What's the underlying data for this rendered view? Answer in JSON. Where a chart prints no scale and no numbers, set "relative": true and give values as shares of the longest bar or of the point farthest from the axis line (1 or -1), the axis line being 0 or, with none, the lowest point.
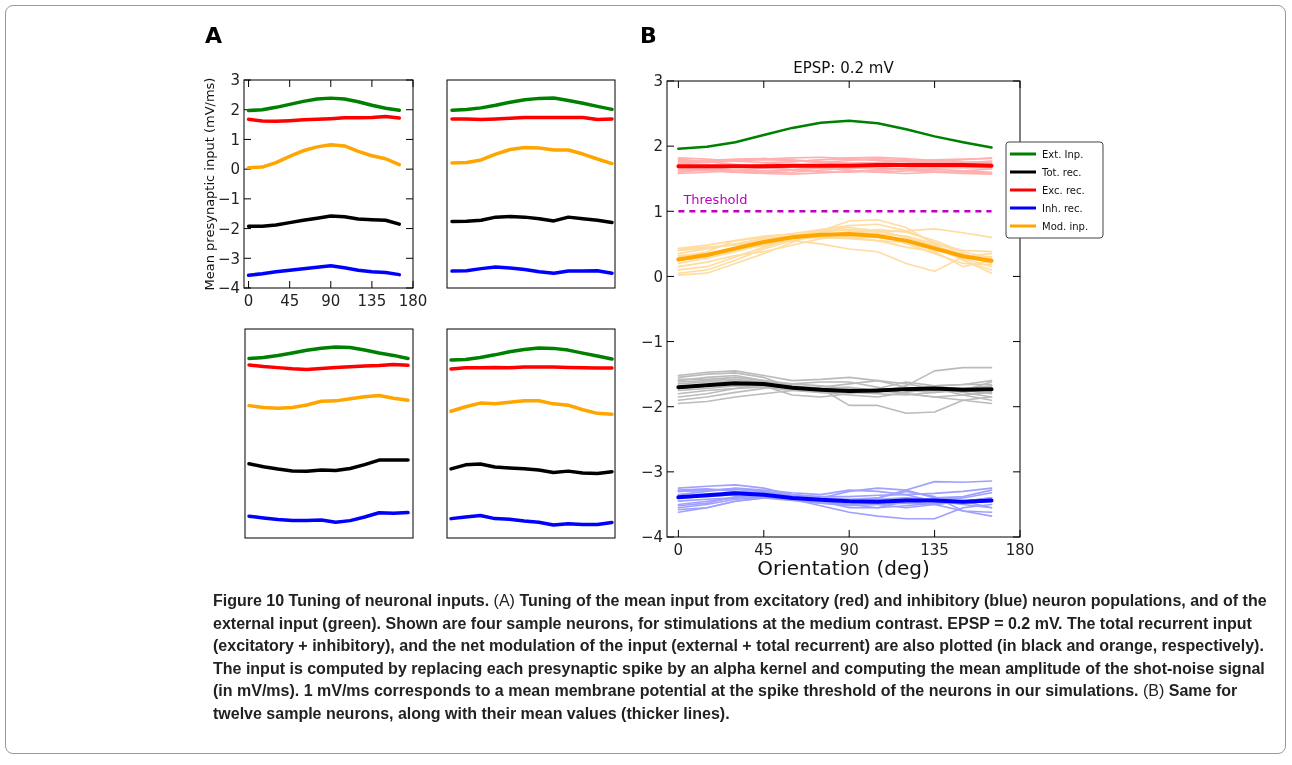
{
  "chart_data": [
    {
      "type": "line",
      "annotations": [
        "A"
      ],
      "ylabel": "Mean presynaptic input (mV/ms)",
      "x": [
        0,
        15,
        30,
        45,
        60,
        75,
        90,
        105,
        120,
        135,
        150,
        165
      ],
      "xlim": [
        -5,
        180
      ],
      "xticks": [
        0,
        45,
        90,
        135,
        180
      ],
      "ylim": [
        -4,
        3
      ],
      "yticks": [
        -4,
        -3,
        -2,
        -1,
        0,
        1,
        2,
        3
      ],
      "series": [
        {
          "color": "#008000",
          "values": [
            1.97,
            2.0,
            2.08,
            2.18,
            2.28,
            2.36,
            2.39,
            2.36,
            2.27,
            2.15,
            2.05,
            1.98
          ]
        },
        {
          "color": "#ff0000",
          "values": [
            1.68,
            1.62,
            1.61,
            1.63,
            1.66,
            1.68,
            1.7,
            1.73,
            1.73,
            1.74,
            1.77,
            1.72
          ]
        },
        {
          "color": "#ffa500",
          "values": [
            0.05,
            0.07,
            0.22,
            0.43,
            0.62,
            0.75,
            0.82,
            0.78,
            0.6,
            0.45,
            0.35,
            0.15
          ]
        },
        {
          "color": "#000000",
          "values": [
            -1.92,
            -1.92,
            -1.88,
            -1.8,
            -1.72,
            -1.65,
            -1.58,
            -1.6,
            -1.68,
            -1.7,
            -1.72,
            -1.85
          ]
        },
        {
          "color": "#0000ff",
          "values": [
            -3.57,
            -3.52,
            -3.45,
            -3.4,
            -3.35,
            -3.3,
            -3.25,
            -3.32,
            -3.4,
            -3.45,
            -3.48,
            -3.55
          ]
        }
      ]
    },
    {
      "type": "line",
      "relative": true,
      "categories": [
        null,
        null,
        null,
        null,
        null,
        null,
        null,
        null,
        null,
        null,
        null,
        null
      ],
      "series": [
        {
          "color": "#008000",
          "values": [
            0.936,
            0.939,
            0.948,
            0.962,
            0.978,
            0.991,
            0.998,
            1,
            0.987,
            0.972,
            0.956,
            0.94
          ]
        },
        {
          "color": "#ff0000",
          "values": [
            0.889,
            0.889,
            0.887,
            0.89,
            0.893,
            0.897,
            0.898,
            0.898,
            0.898,
            0.897,
            0.887,
            0.89
          ]
        },
        {
          "color": "#ffa500",
          "values": [
            0.658,
            0.661,
            0.674,
            0.705,
            0.729,
            0.74,
            0.737,
            0.726,
            0.726,
            0.705,
            0.679,
            0.655
          ]
        },
        {
          "color": "#000000",
          "values": [
            0.35,
            0.351,
            0.357,
            0.373,
            0.376,
            0.373,
            0.365,
            0.353,
            0.373,
            0.365,
            0.357,
            0.345
          ]
        },
        {
          "color": "#0000ff",
          "values": [
            0.089,
            0.091,
            0.102,
            0.11,
            0.105,
            0.097,
            0.086,
            0.078,
            0.089,
            0.089,
            0.091,
            0.078
          ]
        }
      ]
    },
    {
      "type": "line",
      "relative": true,
      "categories": [
        null,
        null,
        null,
        null,
        null,
        null,
        null,
        null,
        null,
        null,
        null,
        null
      ],
      "series": [
        {
          "color": "#008000",
          "values": [
            0.94,
            0.945,
            0.956,
            0.969,
            0.983,
            0.994,
            1,
            0.997,
            0.984,
            0.969,
            0.956,
            0.94
          ]
        },
        {
          "color": "#ff0000",
          "values": [
            0.906,
            0.898,
            0.892,
            0.886,
            0.882,
            0.887,
            0.893,
            0.897,
            0.9,
            0.903,
            0.909,
            0.904
          ]
        },
        {
          "color": "#ffa500",
          "values": [
            0.693,
            0.683,
            0.679,
            0.683,
            0.696,
            0.716,
            0.718,
            0.729,
            0.74,
            0.746,
            0.732,
            0.721
          ]
        },
        {
          "color": "#000000",
          "values": [
            0.389,
            0.373,
            0.361,
            0.351,
            0.35,
            0.356,
            0.353,
            0.364,
            0.384,
            0.408,
            0.408,
            0.409
          ]
        },
        {
          "color": "#0000ff",
          "values": [
            0.114,
            0.105,
            0.097,
            0.091,
            0.091,
            0.094,
            0.082,
            0.091,
            0.11,
            0.132,
            0.129,
            0.133
          ]
        }
      ]
    },
    {
      "type": "line",
      "relative": true,
      "categories": [
        null,
        null,
        null,
        null,
        null,
        null,
        null,
        null,
        null,
        null,
        null,
        null
      ],
      "series": [
        {
          "color": "#008000",
          "values": [
            0.937,
            0.94,
            0.95,
            0.964,
            0.98,
            0.992,
            1,
            0.998,
            0.989,
            0.973,
            0.958,
            0.942
          ]
        },
        {
          "color": "#ff0000",
          "values": [
            0.89,
            0.896,
            0.896,
            0.898,
            0.896,
            0.9,
            0.9,
            0.9,
            0.898,
            0.896,
            0.895,
            0.895
          ]
        },
        {
          "color": "#ffa500",
          "values": [
            0.667,
            0.691,
            0.71,
            0.706,
            0.714,
            0.722,
            0.722,
            0.706,
            0.699,
            0.675,
            0.656,
            0.651
          ]
        },
        {
          "color": "#000000",
          "values": [
            0.364,
            0.385,
            0.389,
            0.374,
            0.369,
            0.364,
            0.358,
            0.345,
            0.352,
            0.342,
            0.339,
            0.349
          ]
        },
        {
          "color": "#0000ff",
          "values": [
            0.102,
            0.111,
            0.118,
            0.102,
            0.099,
            0.089,
            0.083,
            0.068,
            0.075,
            0.071,
            0.071,
            0.082
          ]
        }
      ]
    },
    {
      "type": "line",
      "title": "EPSP: 0.2 mV",
      "xlabel": "Orientation (deg)",
      "legend": "right",
      "x": [
        0,
        15,
        30,
        45,
        60,
        75,
        90,
        105,
        120,
        135,
        150,
        165
      ],
      "xlim": [
        -6,
        180
      ],
      "xticks": [
        0,
        45,
        90,
        135,
        180
      ],
      "ylim": [
        -4,
        3
      ],
      "yticks": [
        -4,
        -3,
        -2,
        -1,
        0,
        1,
        2,
        3
      ],
      "ref_lines": [
        {
          "axis": "y",
          "value": 1,
          "label": "Threshold",
          "color": "#bf00bf",
          "line_style": "dashed"
        }
      ],
      "annotations": [
        "B",
        "Figure 10 Tuning of neuronal inputs.",
        "(A)",
        "Tuning of the mean input from excitatory (red) and inhibitory (blue) neuron populations, and of the external input (green). Shown are four sample neurons, for stimulations at the medium contrast. EPSP = 0.2 mV. The total recurrent input (excitatory + inhibitory), and the net modulation of the input (external + total recurrent) are also plotted (in black and orange, respectively). The input is computed by replacing each presynaptic spike by an alpha kernel and computing the mean amplitude of the shot-noise signal (in mV/ms). 1 mV/ms corresponds to a mean membrane potential at the spike threshold of the neurons in our simulations.",
        "(B)",
        "Same for twelve sample neurons, along with their mean values (thicker lines)."
      ],
      "series": [
        {
          "color": "#ffb0b0",
          "values": [
            1.58,
            1.6,
            1.63,
            1.66,
            1.68,
            1.66,
            1.63,
            1.6,
            1.58,
            1.6,
            1.62,
            1.6
          ]
        },
        {
          "color": "#ffb0b0",
          "values": [
            1.64,
            1.62,
            1.6,
            1.59,
            1.6,
            1.63,
            1.66,
            1.67,
            1.65,
            1.62,
            1.6,
            1.59
          ]
        },
        {
          "color": "#ffb0b0",
          "values": [
            1.76,
            1.78,
            1.8,
            1.81,
            1.79,
            1.76,
            1.74,
            1.75,
            1.78,
            1.77,
            1.74,
            1.72
          ]
        },
        {
          "color": "#ffb0b0",
          "values": [
            1.82,
            1.8,
            1.77,
            1.75,
            1.76,
            1.79,
            1.82,
            1.83,
            1.81,
            1.78,
            1.76,
            1.75
          ]
        },
        {
          "color": "#ffb0b0",
          "values": [
            1.6,
            1.64,
            1.68,
            1.72,
            1.76,
            1.79,
            1.8,
            1.78,
            1.76,
            1.75,
            1.74,
            1.74
          ]
        },
        {
          "color": "#ffb0b0",
          "values": [
            1.8,
            1.76,
            1.72,
            1.68,
            1.64,
            1.61,
            1.6,
            1.62,
            1.66,
            1.67,
            1.67,
            1.67
          ]
        },
        {
          "color": "#ffb0b0",
          "values": [
            1.66,
            1.64,
            1.62,
            1.62,
            1.64,
            1.67,
            1.7,
            1.74,
            1.77,
            1.79,
            1.8,
            1.81
          ]
        },
        {
          "color": "#ffb0b0",
          "values": [
            1.74,
            1.76,
            1.78,
            1.79,
            1.78,
            1.75,
            1.71,
            1.67,
            1.63,
            1.6,
            1.58,
            1.57
          ]
        },
        {
          "color": "#ffb0b0",
          "values": [
            1.62,
            1.66,
            1.63,
            1.6,
            1.63,
            1.66,
            1.63,
            1.6,
            1.62,
            1.65,
            1.62,
            1.65
          ]
        },
        {
          "color": "#ffb0b0",
          "values": [
            1.78,
            1.75,
            1.78,
            1.81,
            1.78,
            1.75,
            1.78,
            1.81,
            1.79,
            1.76,
            1.79,
            1.82
          ]
        },
        {
          "color": "#ffb0b0",
          "values": [
            1.66,
            1.63,
            1.6,
            1.58,
            1.57,
            1.59,
            1.61,
            1.64,
            1.66,
            1.7,
            1.74,
            1.76
          ]
        },
        {
          "color": "#ffb0b0",
          "values": [
            1.73,
            1.75,
            1.77,
            1.8,
            1.82,
            1.83,
            1.81,
            1.79,
            1.76,
            1.74,
            1.74,
            1.77
          ]
        },
        {
          "color": "#ffdca0",
          "values": [
            0.43,
            0.48,
            0.55,
            0.6,
            0.66,
            0.72,
            0.7,
            0.68,
            0.7,
            0.73,
            0.67,
            0.6
          ]
        },
        {
          "color": "#ffdca0",
          "values": [
            0.02,
            0.05,
            0.2,
            0.35,
            0.52,
            0.7,
            0.85,
            0.87,
            0.75,
            0.5,
            0.25,
            0.1
          ]
        },
        {
          "color": "#ffdca0",
          "values": [
            0.4,
            0.43,
            0.5,
            0.52,
            0.55,
            0.5,
            0.42,
            0.38,
            0.2,
            0.08,
            0.3,
            0.35
          ]
        },
        {
          "color": "#ffdca0",
          "values": [
            0.2,
            0.28,
            0.38,
            0.5,
            0.62,
            0.72,
            0.78,
            0.8,
            0.7,
            0.52,
            0.35,
            0.22
          ]
        },
        {
          "color": "#ffdca0",
          "values": [
            0.3,
            0.38,
            0.55,
            0.62,
            0.65,
            0.62,
            0.6,
            0.6,
            0.55,
            0.45,
            0.28,
            0.15
          ]
        },
        {
          "color": "#ffdca0",
          "values": [
            0.1,
            0.15,
            0.3,
            0.45,
            0.58,
            0.68,
            0.72,
            0.7,
            0.6,
            0.45,
            0.25,
            0.05
          ]
        },
        {
          "color": "#ffdca0",
          "values": [
            0.35,
            0.42,
            0.5,
            0.58,
            0.62,
            0.65,
            0.6,
            0.55,
            0.52,
            0.4,
            0.32,
            0.3
          ]
        },
        {
          "color": "#ffdca0",
          "values": [
            0.15,
            0.22,
            0.32,
            0.38,
            0.48,
            0.58,
            0.62,
            0.65,
            0.62,
            0.5,
            0.4,
            0.38
          ]
        },
        {
          "color": "#ffdca0",
          "values": [
            0.25,
            0.3,
            0.4,
            0.48,
            0.58,
            0.6,
            0.58,
            0.55,
            0.45,
            0.38,
            0.15,
            0.25
          ]
        },
        {
          "color": "#ffdca0",
          "values": [
            0.42,
            0.45,
            0.48,
            0.55,
            0.6,
            0.62,
            0.65,
            0.72,
            0.68,
            0.55,
            0.38,
            0.28
          ]
        },
        {
          "color": "#ffdca0",
          "values": [
            0.05,
            0.1,
            0.25,
            0.42,
            0.55,
            0.62,
            0.68,
            0.65,
            0.5,
            0.35,
            0.2,
            0.18
          ]
        },
        {
          "color": "#ffdca0",
          "values": [
            0.32,
            0.35,
            0.42,
            0.5,
            0.6,
            0.7,
            0.75,
            0.7,
            0.6,
            0.48,
            0.32,
            0.2
          ]
        },
        {
          "color": "#bbbbbb",
          "values": [
            -1.55,
            -1.5,
            -1.48,
            -1.55,
            -1.7,
            -1.72,
            -1.75,
            -1.78,
            -1.68,
            -1.45,
            -1.4,
            -1.4
          ]
        },
        {
          "color": "#bbbbbb",
          "values": [
            -1.95,
            -1.92,
            -1.85,
            -1.8,
            -1.75,
            -1.72,
            -1.7,
            -1.75,
            -1.8,
            -1.85,
            -1.9,
            -1.95
          ]
        },
        {
          "color": "#bbbbbb",
          "values": [
            -1.6,
            -1.55,
            -1.52,
            -1.6,
            -1.68,
            -1.72,
            -1.98,
            -1.98,
            -2.1,
            -2.08,
            -1.9,
            -1.85
          ]
        },
        {
          "color": "#bbbbbb",
          "values": [
            -1.75,
            -1.72,
            -1.68,
            -1.68,
            -1.72,
            -1.7,
            -1.65,
            -1.6,
            -1.65,
            -1.72,
            -1.82,
            -1.9
          ]
        },
        {
          "color": "#bbbbbb",
          "values": [
            -1.52,
            -1.47,
            -1.45,
            -1.52,
            -1.6,
            -1.58,
            -1.55,
            -1.6,
            -1.7,
            -1.75,
            -1.75,
            -1.62
          ]
        },
        {
          "color": "#bbbbbb",
          "values": [
            -1.9,
            -1.85,
            -1.78,
            -1.72,
            -1.65,
            -1.62,
            -1.62,
            -1.7,
            -1.8,
            -1.85,
            -1.82,
            -1.78
          ]
        },
        {
          "color": "#bbbbbb",
          "values": [
            -1.72,
            -1.68,
            -1.58,
            -1.62,
            -1.72,
            -1.78,
            -1.82,
            -1.85,
            -1.78,
            -1.72,
            -1.78,
            -1.85
          ]
        },
        {
          "color": "#bbbbbb",
          "values": [
            -1.65,
            -1.62,
            -1.62,
            -1.68,
            -1.82,
            -1.85,
            -1.8,
            -1.72,
            -1.62,
            -1.68,
            -1.66,
            -1.6
          ]
        },
        {
          "color": "#bbbbbb",
          "values": [
            -1.58,
            -1.58,
            -1.55,
            -1.6,
            -1.65,
            -1.68,
            -1.72,
            -1.75,
            -1.72,
            -1.7,
            -1.72,
            -1.75
          ]
        },
        {
          "color": "#bbbbbb",
          "values": [
            -1.8,
            -1.75,
            -1.72,
            -1.7,
            -1.75,
            -1.78,
            -1.78,
            -1.72,
            -1.75,
            -1.78,
            -1.72,
            -1.68
          ]
        },
        {
          "color": "#bbbbbb",
          "values": [
            -1.85,
            -1.8,
            -1.72,
            -1.64,
            -1.7,
            -1.75,
            -1.78,
            -1.8,
            -1.82,
            -1.78,
            -1.75,
            -1.8
          ]
        },
        {
          "color": "#bbbbbb",
          "values": [
            -1.62,
            -1.6,
            -1.58,
            -1.65,
            -1.72,
            -1.76,
            -1.78,
            -1.76,
            -1.72,
            -1.68,
            -1.66,
            -1.66
          ]
        },
        {
          "color": "#a0a0ff",
          "values": [
            -3.3,
            -3.28,
            -3.26,
            -3.3,
            -3.38,
            -3.45,
            -3.5,
            -3.4,
            -3.28,
            -3.15,
            -3.16,
            -3.14
          ]
        },
        {
          "color": "#a0a0ff",
          "values": [
            -3.55,
            -3.5,
            -3.42,
            -3.4,
            -3.42,
            -3.52,
            -3.62,
            -3.68,
            -3.72,
            -3.72,
            -3.55,
            -3.5
          ]
        },
        {
          "color": "#a0a0ff",
          "values": [
            -3.25,
            -3.22,
            -3.2,
            -3.25,
            -3.35,
            -3.4,
            -3.45,
            -3.5,
            -3.55,
            -3.5,
            -3.45,
            -3.55
          ]
        },
        {
          "color": "#a0a0ff",
          "values": [
            -3.5,
            -3.45,
            -3.4,
            -3.35,
            -3.38,
            -3.4,
            -3.42,
            -3.4,
            -3.3,
            -3.38,
            -3.6,
            -3.62
          ]
        },
        {
          "color": "#a0a0ff",
          "values": [
            -3.4,
            -3.38,
            -3.35,
            -3.32,
            -3.35,
            -3.4,
            -3.3,
            -3.25,
            -3.28,
            -3.4,
            -3.38,
            -3.28
          ]
        },
        {
          "color": "#a0a0ff",
          "values": [
            -3.58,
            -3.55,
            -3.45,
            -3.4,
            -3.42,
            -3.45,
            -3.55,
            -3.55,
            -3.45,
            -3.5,
            -3.6,
            -3.68
          ]
        },
        {
          "color": "#a0a0ff",
          "values": [
            -3.35,
            -3.3,
            -3.25,
            -3.28,
            -3.32,
            -3.35,
            -3.28,
            -3.3,
            -3.35,
            -3.45,
            -3.5,
            -3.55
          ]
        },
        {
          "color": "#a0a0ff",
          "values": [
            -3.45,
            -3.42,
            -3.4,
            -3.38,
            -3.42,
            -3.48,
            -3.5,
            -3.55,
            -3.52,
            -3.48,
            -3.45,
            -3.4
          ]
        },
        {
          "color": "#a0a0ff",
          "values": [
            -3.28,
            -3.26,
            -3.3,
            -3.32,
            -3.38,
            -3.42,
            -3.45,
            -3.42,
            -3.4,
            -3.42,
            -3.48,
            -3.45
          ]
        },
        {
          "color": "#a0a0ff",
          "values": [
            -3.52,
            -3.48,
            -3.38,
            -3.35,
            -3.4,
            -3.45,
            -3.5,
            -3.48,
            -3.45,
            -3.42,
            -3.4,
            -3.32
          ]
        },
        {
          "color": "#a0a0ff",
          "values": [
            -3.3,
            -3.28,
            -3.27,
            -3.3,
            -3.35,
            -3.38,
            -3.38,
            -3.36,
            -3.35,
            -3.33,
            -3.3,
            -3.25
          ]
        },
        {
          "color": "#a0a0ff",
          "values": [
            -3.62,
            -3.55,
            -3.45,
            -3.4,
            -3.44,
            -3.48,
            -3.52,
            -3.5,
            -3.48,
            -3.5,
            -3.45,
            -3.4
          ]
        },
        {
          "name": "Ext. Inp.",
          "color": "#008000",
          "values": [
            1.96,
            1.99,
            2.06,
            2.17,
            2.28,
            2.36,
            2.39,
            2.35,
            2.26,
            2.15,
            2.06,
            1.98
          ]
        },
        {
          "name": "Tot. rec.",
          "color": "#000000",
          "values": [
            -1.7,
            -1.67,
            -1.64,
            -1.65,
            -1.71,
            -1.74,
            -1.76,
            -1.75,
            -1.73,
            -1.72,
            -1.74,
            -1.73
          ]
        },
        {
          "name": "Exc. rec.",
          "color": "#ff0000",
          "values": [
            1.69,
            1.69,
            1.69,
            1.69,
            1.7,
            1.7,
            1.7,
            1.71,
            1.71,
            1.71,
            1.71,
            1.7
          ]
        },
        {
          "name": "Inh. rec.",
          "color": "#0000ff",
          "values": [
            -3.39,
            -3.36,
            -3.33,
            -3.35,
            -3.4,
            -3.43,
            -3.45,
            -3.46,
            -3.44,
            -3.44,
            -3.46,
            -3.44
          ]
        },
        {
          "name": "Mod. inp.",
          "color": "#ffa500",
          "values": [
            0.26,
            0.33,
            0.43,
            0.53,
            0.6,
            0.64,
            0.65,
            0.62,
            0.55,
            0.43,
            0.31,
            0.24
          ]
        }
      ]
    }
  ]
}
